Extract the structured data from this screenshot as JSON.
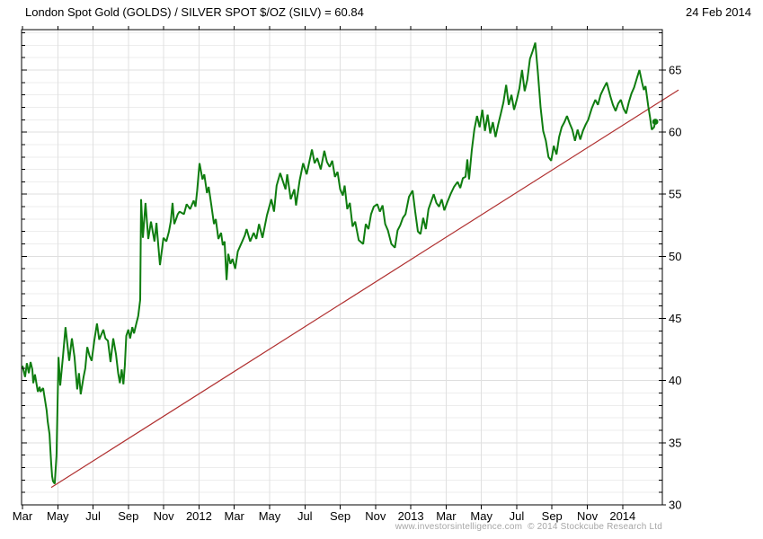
{
  "header": {
    "title": "London Spot Gold (GOLDS) / SILVER SPOT $/OZ (SILV) = 60.84",
    "date": "24 Feb 2014"
  },
  "footer": {
    "credit": "www.investorsintelligence.com  © 2014 Stockcube Research Ltd"
  },
  "chart_data": {
    "type": "line",
    "title": "London Spot Gold (GOLDS) / SILVER SPOT $/OZ (SILV) = 60.84",
    "as_of_date": "24 Feb 2014",
    "last_value": 60.84,
    "x_unit": "months since Mar 2011",
    "xlim": [
      0,
      36.25
    ],
    "ylim": [
      30,
      68.25
    ],
    "grid": true,
    "legend": "none",
    "y_axis_side": "right",
    "y_ticks_major": [
      30,
      35,
      40,
      45,
      50,
      55,
      60,
      65
    ],
    "y_minor_step": 1,
    "x_ticks": [
      {
        "m": 0,
        "label": "Mar"
      },
      {
        "m": 2,
        "label": "May"
      },
      {
        "m": 4,
        "label": "Jul"
      },
      {
        "m": 6,
        "label": "Sep"
      },
      {
        "m": 8,
        "label": "Nov"
      },
      {
        "m": 10,
        "label": "2012"
      },
      {
        "m": 12,
        "label": "Mar"
      },
      {
        "m": 14,
        "label": "May"
      },
      {
        "m": 16,
        "label": "Jul"
      },
      {
        "m": 18,
        "label": "Sep"
      },
      {
        "m": 20,
        "label": "Nov"
      },
      {
        "m": 22,
        "label": "2013"
      },
      {
        "m": 24,
        "label": "Mar"
      },
      {
        "m": 26,
        "label": "May"
      },
      {
        "m": 28,
        "label": "Jul"
      },
      {
        "m": 30,
        "label": "Sep"
      },
      {
        "m": 32,
        "label": "Nov"
      },
      {
        "m": 34,
        "label": "2014"
      }
    ],
    "colors": {
      "line": "#0f7d10",
      "trend": "#b03030",
      "grid_minor": "#ededed",
      "grid_major": "#dfdfdf",
      "grid_vertical": "#e0e0e0",
      "axis": "#000000",
      "footer": "#a6a6a6"
    },
    "trendline": {
      "name": "rising support trendline",
      "points": [
        [
          1.63,
          31.4
        ],
        [
          37.17,
          63.4
        ]
      ]
    },
    "end_marker": {
      "m": 35.85,
      "value": 60.84
    },
    "series": [
      {
        "name": "GOLDS/SILV ratio",
        "points": [
          [
            0,
            41.2
          ],
          [
            0.15,
            40.3
          ],
          [
            0.25,
            41.4
          ],
          [
            0.36,
            40.6
          ],
          [
            0.46,
            41.5
          ],
          [
            0.56,
            40.9
          ],
          [
            0.61,
            39.8
          ],
          [
            0.71,
            40.5
          ],
          [
            0.87,
            39.1
          ],
          [
            0.97,
            39.5
          ],
          [
            1.02,
            39.1
          ],
          [
            1.17,
            39.4
          ],
          [
            1.37,
            37.6
          ],
          [
            1.43,
            36.7
          ],
          [
            1.53,
            35.7
          ],
          [
            1.58,
            34.5
          ],
          [
            1.63,
            33.3
          ],
          [
            1.68,
            32.3
          ],
          [
            1.73,
            31.9
          ],
          [
            1.83,
            31.7
          ],
          [
            1.93,
            34
          ],
          [
            2.04,
            41.9
          ],
          [
            2.14,
            39.6
          ],
          [
            2.29,
            41.9
          ],
          [
            2.44,
            44.3
          ],
          [
            2.65,
            41.6
          ],
          [
            2.8,
            43.4
          ],
          [
            2.95,
            41.9
          ],
          [
            3.1,
            39.3
          ],
          [
            3.2,
            40.6
          ],
          [
            3.3,
            38.9
          ],
          [
            3.46,
            40.3
          ],
          [
            3.56,
            41
          ],
          [
            3.67,
            42.7
          ],
          [
            3.8,
            42
          ],
          [
            3.92,
            41.6
          ],
          [
            4.07,
            43.2
          ],
          [
            4.22,
            44.6
          ],
          [
            4.35,
            43.3
          ],
          [
            4.58,
            44.1
          ],
          [
            4.7,
            43.4
          ],
          [
            4.84,
            43.2
          ],
          [
            4.99,
            41.5
          ],
          [
            5.14,
            43.4
          ],
          [
            5.3,
            42.1
          ],
          [
            5.42,
            40.6
          ],
          [
            5.52,
            39.8
          ],
          [
            5.62,
            40.9
          ],
          [
            5.72,
            39.7
          ],
          [
            5.8,
            41.2
          ],
          [
            5.88,
            43.6
          ],
          [
            6,
            44.1
          ],
          [
            6.1,
            43.4
          ],
          [
            6.22,
            44.3
          ],
          [
            6.32,
            43.8
          ],
          [
            6.45,
            44.6
          ],
          [
            6.56,
            45.2
          ],
          [
            6.67,
            46.5
          ],
          [
            6.72,
            54.6
          ],
          [
            6.82,
            51.5
          ],
          [
            6.97,
            54.3
          ],
          [
            7.13,
            51.4
          ],
          [
            7.28,
            52.8
          ],
          [
            7.48,
            51.2
          ],
          [
            7.59,
            52.7
          ],
          [
            7.69,
            51
          ],
          [
            7.79,
            49.3
          ],
          [
            7.99,
            51.5
          ],
          [
            8.15,
            51.2
          ],
          [
            8.3,
            52
          ],
          [
            8.4,
            52.8
          ],
          [
            8.5,
            54.3
          ],
          [
            8.6,
            52.6
          ],
          [
            8.7,
            53
          ],
          [
            8.8,
            53.4
          ],
          [
            8.9,
            53.6
          ],
          [
            9.15,
            53.4
          ],
          [
            9.3,
            54.2
          ],
          [
            9.5,
            53.8
          ],
          [
            9.7,
            54.5
          ],
          [
            9.8,
            54
          ],
          [
            9.9,
            55.3
          ],
          [
            10.03,
            57.5
          ],
          [
            10.2,
            56.2
          ],
          [
            10.3,
            56.6
          ],
          [
            10.45,
            55.1
          ],
          [
            10.55,
            55.6
          ],
          [
            10.7,
            54.1
          ],
          [
            10.85,
            52.6
          ],
          [
            10.95,
            53
          ],
          [
            11.1,
            51.4
          ],
          [
            11.25,
            51.9
          ],
          [
            11.35,
            50.9
          ],
          [
            11.45,
            51.2
          ],
          [
            11.56,
            48.1
          ],
          [
            11.66,
            50.2
          ],
          [
            11.78,
            49.4
          ],
          [
            11.9,
            49.8
          ],
          [
            12.05,
            49
          ],
          [
            12.2,
            50.4
          ],
          [
            12.45,
            51.2
          ],
          [
            12.6,
            51.7
          ],
          [
            12.7,
            52.2
          ],
          [
            12.9,
            51.2
          ],
          [
            13.1,
            51.9
          ],
          [
            13.25,
            51.4
          ],
          [
            13.4,
            52.6
          ],
          [
            13.6,
            51.5
          ],
          [
            13.85,
            53.3
          ],
          [
            14.1,
            54.6
          ],
          [
            14.25,
            53.6
          ],
          [
            14.4,
            55.7
          ],
          [
            14.6,
            56.7
          ],
          [
            14.9,
            55.4
          ],
          [
            15,
            56.6
          ],
          [
            15.2,
            54.6
          ],
          [
            15.4,
            55.4
          ],
          [
            15.5,
            54.1
          ],
          [
            15.7,
            56.1
          ],
          [
            15.9,
            57.5
          ],
          [
            16.1,
            56.6
          ],
          [
            16.4,
            58.6
          ],
          [
            16.55,
            57.5
          ],
          [
            16.7,
            57.9
          ],
          [
            16.9,
            57
          ],
          [
            17.1,
            58.5
          ],
          [
            17.25,
            57.6
          ],
          [
            17.4,
            57.2
          ],
          [
            17.55,
            57.7
          ],
          [
            17.7,
            56.4
          ],
          [
            17.85,
            56.8
          ],
          [
            18,
            55.4
          ],
          [
            18.15,
            54.9
          ],
          [
            18.25,
            55.7
          ],
          [
            18.4,
            53.8
          ],
          [
            18.55,
            54.3
          ],
          [
            18.7,
            52.4
          ],
          [
            18.85,
            52.8
          ],
          [
            19.05,
            51.3
          ],
          [
            19.3,
            51
          ],
          [
            19.45,
            52.6
          ],
          [
            19.6,
            52.2
          ],
          [
            19.75,
            53.4
          ],
          [
            19.9,
            54
          ],
          [
            20.1,
            54.2
          ],
          [
            20.25,
            53.6
          ],
          [
            20.4,
            54.1
          ],
          [
            20.55,
            52.6
          ],
          [
            20.7,
            52.1
          ],
          [
            20.9,
            51
          ],
          [
            21.1,
            50.7
          ],
          [
            21.25,
            52.1
          ],
          [
            21.4,
            52.5
          ],
          [
            21.55,
            53.1
          ],
          [
            21.7,
            53.4
          ],
          [
            21.9,
            54.8
          ],
          [
            22.1,
            55.3
          ],
          [
            22.25,
            53.6
          ],
          [
            22.4,
            52
          ],
          [
            22.55,
            51.8
          ],
          [
            22.7,
            53.1
          ],
          [
            22.85,
            52.2
          ],
          [
            23,
            53.8
          ],
          [
            23.15,
            54.4
          ],
          [
            23.3,
            55
          ],
          [
            23.45,
            54.3
          ],
          [
            23.6,
            54
          ],
          [
            23.75,
            54.6
          ],
          [
            23.9,
            53.7
          ],
          [
            24.05,
            54.3
          ],
          [
            24.25,
            55
          ],
          [
            24.45,
            55.6
          ],
          [
            24.65,
            56
          ],
          [
            24.8,
            55.5
          ],
          [
            24.95,
            56.3
          ],
          [
            25.1,
            56.4
          ],
          [
            25.2,
            57.8
          ],
          [
            25.3,
            56.2
          ],
          [
            25.45,
            58.5
          ],
          [
            25.6,
            60.2
          ],
          [
            25.75,
            61.3
          ],
          [
            25.9,
            60.4
          ],
          [
            26.05,
            61.8
          ],
          [
            26.2,
            60.1
          ],
          [
            26.35,
            61.4
          ],
          [
            26.5,
            59.9
          ],
          [
            26.65,
            60.8
          ],
          [
            26.8,
            59.6
          ],
          [
            26.95,
            60.6
          ],
          [
            27.1,
            61.5
          ],
          [
            27.25,
            62.4
          ],
          [
            27.4,
            63.8
          ],
          [
            27.55,
            62.2
          ],
          [
            27.7,
            63
          ],
          [
            27.85,
            61.8
          ],
          [
            28,
            62.6
          ],
          [
            28.15,
            63.5
          ],
          [
            28.3,
            65
          ],
          [
            28.45,
            63.3
          ],
          [
            28.6,
            64.2
          ],
          [
            28.75,
            65.9
          ],
          [
            28.9,
            66.5
          ],
          [
            29.05,
            67.2
          ],
          [
            29.2,
            64.8
          ],
          [
            29.35,
            62
          ],
          [
            29.5,
            60.1
          ],
          [
            29.65,
            59.3
          ],
          [
            29.8,
            58
          ],
          [
            29.95,
            57.7
          ],
          [
            30.1,
            58.9
          ],
          [
            30.25,
            58.2
          ],
          [
            30.4,
            59.6
          ],
          [
            30.55,
            60.4
          ],
          [
            30.7,
            60.8
          ],
          [
            30.85,
            61.3
          ],
          [
            31,
            60.7
          ],
          [
            31.15,
            60.2
          ],
          [
            31.3,
            59.3
          ],
          [
            31.45,
            60.2
          ],
          [
            31.6,
            59.4
          ],
          [
            31.75,
            60.1
          ],
          [
            31.9,
            60.6
          ],
          [
            32.05,
            61
          ],
          [
            32.25,
            61.9
          ],
          [
            32.45,
            62.6
          ],
          [
            32.6,
            62.2
          ],
          [
            32.75,
            63
          ],
          [
            32.95,
            63.6
          ],
          [
            33.1,
            64
          ],
          [
            33.3,
            62.9
          ],
          [
            33.45,
            62.2
          ],
          [
            33.6,
            61.7
          ],
          [
            33.75,
            62.3
          ],
          [
            33.9,
            62.6
          ],
          [
            34.05,
            61.9
          ],
          [
            34.2,
            61.5
          ],
          [
            34.35,
            62.4
          ],
          [
            34.5,
            63.1
          ],
          [
            34.65,
            63.6
          ],
          [
            34.8,
            64.3
          ],
          [
            34.95,
            65
          ],
          [
            35.1,
            64
          ],
          [
            35.2,
            63.4
          ],
          [
            35.3,
            63.7
          ],
          [
            35.45,
            62.1
          ],
          [
            35.55,
            61.2
          ],
          [
            35.65,
            60.2
          ],
          [
            35.78,
            60.4
          ],
          [
            35.85,
            60.84
          ]
        ]
      }
    ]
  }
}
